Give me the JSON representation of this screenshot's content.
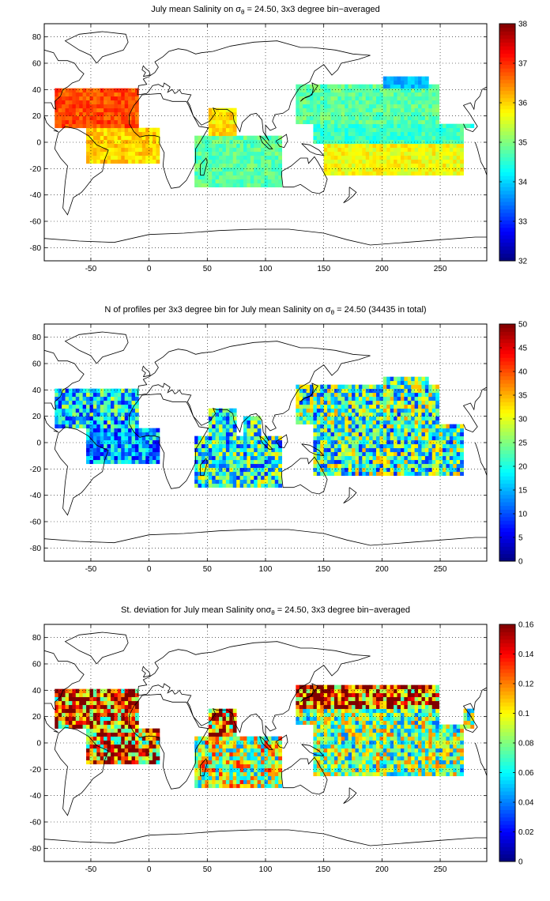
{
  "panels": [
    {
      "title_prefix": "July mean Salinity on ",
      "title_symbol": "σ",
      "title_subscript": "θ",
      "title_suffix": " = 24.50, 3x3 degree bin−averaged",
      "colorbar": {
        "min": 32,
        "max": 38,
        "ticks": [
          "32",
          "33",
          "34",
          "35",
          "36",
          "37",
          "38"
        ]
      }
    },
    {
      "title_prefix": "N of profiles per 3x3 degree bin for July mean Salinity on ",
      "title_symbol": "σ",
      "title_subscript": "θ",
      "title_suffix": " = 24.50 (34435 in total)",
      "colorbar": {
        "min": 0,
        "max": 50,
        "ticks": [
          "0",
          "5",
          "10",
          "15",
          "20",
          "25",
          "30",
          "35",
          "40",
          "45",
          "50"
        ]
      }
    },
    {
      "title_prefix": "St. deviation for July mean Salinity on",
      "title_symbol": "σ",
      "title_subscript": "θ",
      "title_suffix": " = 24.50, 3x3 degree bin−averaged",
      "colorbar": {
        "min": 0,
        "max": 0.16,
        "ticks": [
          "0",
          "0.02",
          "0.04",
          "0.06",
          "0.08",
          "0.1",
          "0.12",
          "0.14",
          "0.16"
        ]
      }
    }
  ],
  "axes": {
    "xlim": [
      -90,
      290
    ],
    "ylim": [
      -90,
      90
    ],
    "xticks": [
      "-50",
      "0",
      "50",
      "100",
      "150",
      "200",
      "250"
    ],
    "yticks": [
      "-80",
      "-60",
      "-40",
      "-20",
      "0",
      "20",
      "40",
      "60",
      "80"
    ],
    "grid": "dotted"
  },
  "colormap": "jet",
  "chart_data": [
    {
      "type": "heatmap",
      "title": "July mean Salinity on σθ = 24.50, 3x3 degree bin−averaged",
      "xlim": [
        -90,
        290
      ],
      "ylim": [
        -90,
        90
      ],
      "clim": [
        32,
        38
      ],
      "regions": [
        {
          "lon": [
            -80,
            -10
          ],
          "lat": [
            10,
            40
          ],
          "value": 36.8
        },
        {
          "lon": [
            -55,
            10
          ],
          "lat": [
            -15,
            10
          ],
          "value": 36.0
        },
        {
          "lon": [
            50,
            75
          ],
          "lat": [
            5,
            25
          ],
          "value": 35.9
        },
        {
          "lon": [
            40,
            115
          ],
          "lat": [
            -35,
            5
          ],
          "value": 34.8
        },
        {
          "lon": [
            125,
            250
          ],
          "lat": [
            15,
            45
          ],
          "value": 34.8
        },
        {
          "lon": [
            150,
            270
          ],
          "lat": [
            -25,
            0
          ],
          "value": 35.7
        },
        {
          "lon": [
            130,
            280
          ],
          "lat": [
            0,
            15
          ],
          "value": 34.6
        },
        {
          "lon": [
            200,
            240
          ],
          "lat": [
            40,
            50
          ],
          "value": 33.8
        }
      ]
    },
    {
      "type": "heatmap",
      "title": "N of profiles per 3x3 degree bin for July mean Salinity on σθ = 24.50 (34435 in total)",
      "xlim": [
        -90,
        290
      ],
      "ylim": [
        -90,
        90
      ],
      "clim": [
        0,
        50
      ],
      "total": 34435,
      "regions": [
        {
          "lon": [
            -80,
            -10
          ],
          "lat": [
            10,
            45
          ],
          "value": 18
        },
        {
          "lon": [
            -55,
            10
          ],
          "lat": [
            -15,
            10
          ],
          "value": 14
        },
        {
          "lon": [
            40,
            115
          ],
          "lat": [
            -35,
            25
          ],
          "value": 20
        },
        {
          "lon": [
            125,
            180
          ],
          "lat": [
            20,
            45
          ],
          "value": 40
        },
        {
          "lon": [
            125,
            270
          ],
          "lat": [
            -25,
            50
          ],
          "value": 22
        }
      ]
    },
    {
      "type": "heatmap",
      "title": "St. deviation for July mean Salinity onσθ = 24.50, 3x3 degree bin−averaged",
      "xlim": [
        -90,
        290
      ],
      "ylim": [
        -90,
        90
      ],
      "clim": [
        0,
        0.16
      ],
      "regions": [
        {
          "lon": [
            -80,
            -10
          ],
          "lat": [
            10,
            45
          ],
          "value": 0.13
        },
        {
          "lon": [
            -55,
            10
          ],
          "lat": [
            -15,
            10
          ],
          "value": 0.12
        },
        {
          "lon": [
            50,
            80
          ],
          "lat": [
            5,
            25
          ],
          "value": 0.13
        },
        {
          "lon": [
            40,
            115
          ],
          "lat": [
            -35,
            5
          ],
          "value": 0.09
        },
        {
          "lon": [
            125,
            250
          ],
          "lat": [
            25,
            45
          ],
          "value": 0.15
        },
        {
          "lon": [
            150,
            270
          ],
          "lat": [
            -15,
            5
          ],
          "value": 0.14
        },
        {
          "lon": [
            125,
            280
          ],
          "lat": [
            -25,
            25
          ],
          "value": 0.08
        }
      ]
    }
  ]
}
